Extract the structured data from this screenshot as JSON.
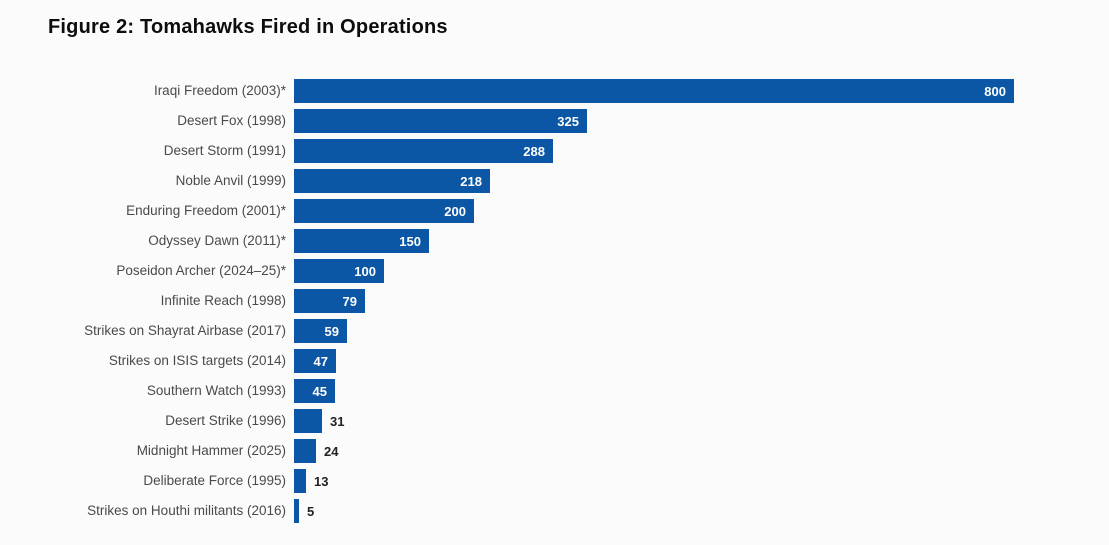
{
  "title": "Figure 2: Tomahawks Fired in Operations",
  "chart_data": {
    "type": "bar",
    "orientation": "horizontal",
    "title": "Figure 2: Tomahawks Fired in Operations",
    "xlabel": "",
    "ylabel": "",
    "categories": [
      "Iraqi Freedom (2003)*",
      "Desert Fox (1998)",
      "Desert Storm (1991)",
      "Noble Anvil (1999)",
      "Enduring Freedom (2001)*",
      "Odyssey Dawn (2011)*",
      "Poseidon Archer (2024–25)*",
      "Infinite Reach (1998)",
      "Strikes on Shayrat Airbase (2017)",
      "Strikes on ISIS targets (2014)",
      "Southern Watch (1993)",
      "Desert Strike (1996)",
      "Midnight Hammer (2025)",
      "Deliberate Force (1995)",
      "Strikes on Houthi militants (2016)"
    ],
    "values": [
      800,
      325,
      288,
      218,
      200,
      150,
      100,
      79,
      59,
      47,
      45,
      31,
      24,
      13,
      5
    ],
    "xlim": [
      0,
      800
    ],
    "grid": false,
    "legend": null,
    "bar_color": "#0b57a5",
    "category_label_color": "#4a4a4a",
    "value_label_inside_color": "#ffffff",
    "value_label_outside_color": "#222222",
    "inside_label_min_value": 45
  }
}
